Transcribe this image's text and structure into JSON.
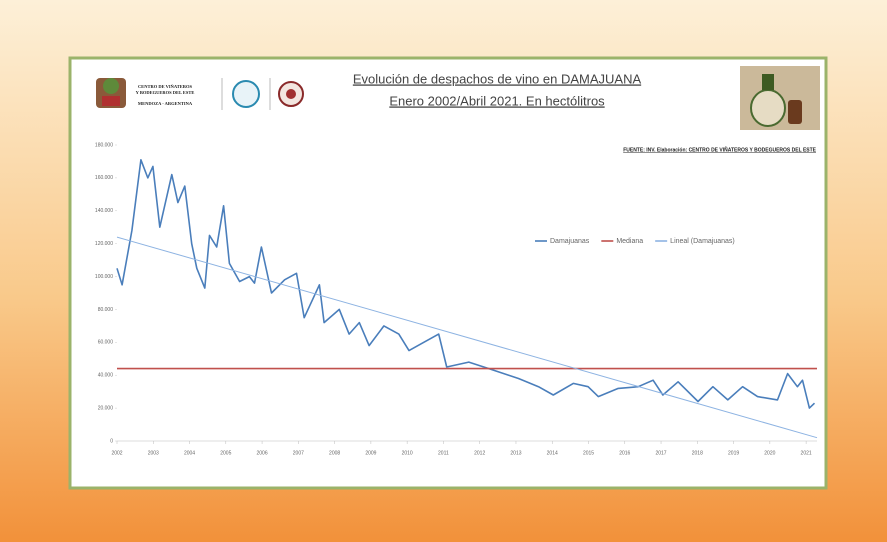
{
  "chart_data": {
    "type": "line",
    "title": "Evolución de despachos de vino en DAMAJUANA",
    "subtitle": "Enero 2002/Abril 2021. En hectólitros",
    "source": "FUENTE: INV. Elaboración: CENTRO DE VIÑATEROS Y BODEGUEROS DEL ESTE",
    "organization": [
      "CENTRO DE VIÑATEROS",
      "Y BODEGUEROS DEL ESTE",
      "MENDOZA - ARGENTINA"
    ],
    "xlim": [
      2002,
      2021.3
    ],
    "xticks": [
      2002,
      2003,
      2004,
      2005,
      2006,
      2007,
      2008,
      2009,
      2010,
      2011,
      2012,
      2013,
      2014,
      2015,
      2016,
      2017,
      2018,
      2019,
      2020,
      2021
    ],
    "ylim": [
      0,
      180000
    ],
    "yticks": [
      {
        "value": 0,
        "label": "0"
      },
      {
        "value": 20000,
        "label": "20.000"
      },
      {
        "value": 40000,
        "label": "40.000"
      },
      {
        "value": 60000,
        "label": "60.000"
      },
      {
        "value": 80000,
        "label": "80.000"
      },
      {
        "value": 100000,
        "label": "100.000"
      },
      {
        "value": 120000,
        "label": "120.000"
      },
      {
        "value": 140000,
        "label": "140.000"
      },
      {
        "value": 160000,
        "label": "160.000"
      },
      {
        "value": 180000,
        "label": "180.000"
      }
    ],
    "grid": false,
    "legend": "top-right",
    "series": [
      {
        "name": "Damajuanas",
        "color": "#4a7ebb",
        "width": 1.6,
        "x": [
          2002.0,
          2002.14,
          2002.41,
          2002.66,
          2002.85,
          2002.99,
          2003.18,
          2003.51,
          2003.68,
          2003.87,
          2004.06,
          2004.2,
          2004.42,
          2004.55,
          2004.75,
          2004.94,
          2005.1,
          2005.38,
          2005.65,
          2005.79,
          2005.98,
          2006.26,
          2006.62,
          2006.95,
          2007.16,
          2007.58,
          2007.71,
          2008.13,
          2008.4,
          2008.68,
          2008.95,
          2009.36,
          2009.77,
          2010.05,
          2010.46,
          2010.87,
          2011.09,
          2011.7,
          2012.25,
          2012.8,
          2013.07,
          2013.62,
          2014.03,
          2014.58,
          2014.99,
          2015.27,
          2015.82,
          2016.37,
          2016.78,
          2017.05,
          2017.47,
          2018.02,
          2018.43,
          2018.84,
          2019.25,
          2019.66,
          2020.21,
          2020.49,
          2020.76,
          2020.9,
          2021.09,
          2021.23
        ],
        "values": [
          105000,
          95000,
          128000,
          171000,
          160000,
          167000,
          130000,
          162000,
          145000,
          155000,
          120000,
          105000,
          93000,
          125000,
          118000,
          143000,
          108000,
          97000,
          100000,
          96000,
          118000,
          90000,
          98000,
          102000,
          75000,
          95000,
          72000,
          80000,
          65000,
          72000,
          58000,
          70000,
          65000,
          55000,
          60000,
          65000,
          45000,
          48000,
          44000,
          40000,
          38000,
          33000,
          28000,
          35000,
          33000,
          27000,
          32000,
          33000,
          37000,
          28000,
          36000,
          24000,
          33000,
          25000,
          33000,
          27000,
          25000,
          41000,
          33000,
          37000,
          20000,
          23000
        ]
      },
      {
        "name": "Mediana",
        "color": "#c0504d",
        "width": 1.6,
        "x": [
          2002,
          2021.3
        ],
        "values": [
          44000,
          44000
        ]
      },
      {
        "name": "Lineal (Damajuanas)",
        "color": "#8db3e2",
        "width": 1,
        "x": [
          2002,
          2021.3
        ],
        "values": [
          124000,
          2000
        ]
      }
    ]
  }
}
